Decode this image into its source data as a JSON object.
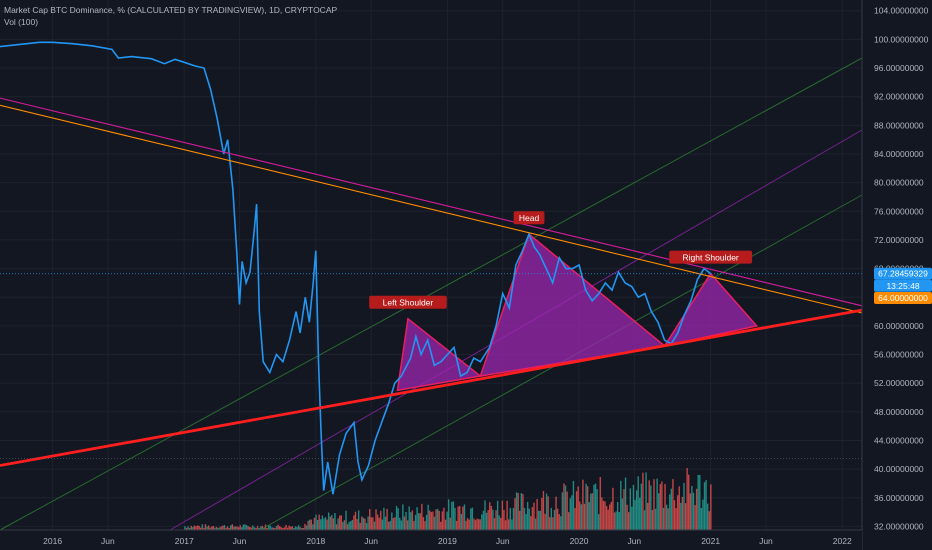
{
  "header": {
    "title": "Market Cap BTC Dominance, % (CALCULATED BY TRADINGVIEW), 1D, CRYPTOCAP",
    "volume_label": "Vol (100)"
  },
  "price_tags": {
    "last_price": "67.28459329",
    "countdown": "13:25:48",
    "trend_price": "64.00000000"
  },
  "colors": {
    "background": "#131722",
    "price_line": "#2196f3",
    "volume_up": "#26a69a",
    "volume_down": "#ef5350",
    "pattern_fill": "#9c27b0",
    "pattern_stroke": "#e91e63",
    "support_line": "#ff1e1e",
    "label_bg": "#b71c1c",
    "channel_line": "#2e7d32",
    "channel_mid": "#8e24aa",
    "resistance_line": "#ff8c00",
    "axis_text": "#b2b5be"
  },
  "chart_data": {
    "type": "line",
    "title": "Market Cap BTC Dominance, % (CALCULATED BY TRADINGVIEW), 1D, CRYPTOCAP",
    "x_axis_labels": [
      "2016",
      "Jun",
      "2017",
      "Jun",
      "2018",
      "Jun",
      "2019",
      "Jun",
      "2020",
      "Jun",
      "2021",
      "Jun",
      "2022"
    ],
    "y_axis_labels": [
      "104.00000000",
      "100.00000000",
      "96.00000000",
      "92.00000000",
      "88.00000000",
      "84.00000000",
      "80.00000000",
      "76.00000000",
      "72.00000000",
      "68.00000000",
      "64.00000000",
      "60.00000000",
      "56.00000000",
      "52.00000000",
      "48.00000000",
      "44.00000000",
      "40.00000000",
      "36.00000000",
      "32.00000000"
    ],
    "ylim": [
      31.5,
      105.5
    ],
    "xlim": [
      2015.6,
      2022.15
    ],
    "grid": true,
    "series": [
      {
        "name": "BTC Dominance",
        "points": [
          [
            2015.6,
            99.0
          ],
          [
            2015.75,
            99.3
          ],
          [
            2015.9,
            99.6
          ],
          [
            2016.0,
            99.6
          ],
          [
            2016.15,
            99.4
          ],
          [
            2016.3,
            99.1
          ],
          [
            2016.45,
            98.6
          ],
          [
            2016.5,
            97.4
          ],
          [
            2016.6,
            97.6
          ],
          [
            2016.75,
            97.3
          ],
          [
            2016.85,
            96.6
          ],
          [
            2016.93,
            97.2
          ],
          [
            2017.0,
            96.8
          ],
          [
            2017.08,
            96.3
          ],
          [
            2017.15,
            96.0
          ],
          [
            2017.2,
            93.0
          ],
          [
            2017.25,
            89.0
          ],
          [
            2017.3,
            84.0
          ],
          [
            2017.33,
            86.0
          ],
          [
            2017.37,
            79.0
          ],
          [
            2017.4,
            70.0
          ],
          [
            2017.42,
            63.0
          ],
          [
            2017.44,
            69.0
          ],
          [
            2017.47,
            66.0
          ],
          [
            2017.5,
            67.5
          ],
          [
            2017.53,
            73.0
          ],
          [
            2017.55,
            77.0
          ],
          [
            2017.57,
            62.0
          ],
          [
            2017.6,
            55.0
          ],
          [
            2017.65,
            53.5
          ],
          [
            2017.7,
            56.0
          ],
          [
            2017.75,
            55.0
          ],
          [
            2017.8,
            58.0
          ],
          [
            2017.85,
            62.0
          ],
          [
            2017.88,
            59.0
          ],
          [
            2017.92,
            64.0
          ],
          [
            2017.95,
            60.5
          ],
          [
            2017.98,
            66.0
          ],
          [
            2018.0,
            70.5
          ],
          [
            2018.02,
            55.0
          ],
          [
            2018.04,
            45.0
          ],
          [
            2018.06,
            37.0
          ],
          [
            2018.09,
            41.0
          ],
          [
            2018.13,
            36.5
          ],
          [
            2018.18,
            42.0
          ],
          [
            2018.23,
            45.0
          ],
          [
            2018.29,
            46.5
          ],
          [
            2018.32,
            41.0
          ],
          [
            2018.35,
            38.5
          ],
          [
            2018.4,
            40.5
          ],
          [
            2018.45,
            44.0
          ],
          [
            2018.5,
            46.5
          ],
          [
            2018.55,
            49.0
          ],
          [
            2018.6,
            52.0
          ],
          [
            2018.65,
            53.0
          ],
          [
            2018.72,
            55.5
          ],
          [
            2018.76,
            58.5
          ],
          [
            2018.8,
            56.0
          ],
          [
            2018.85,
            58.0
          ],
          [
            2018.9,
            54.5
          ],
          [
            2018.95,
            55.0
          ],
          [
            2019.0,
            56.0
          ],
          [
            2019.05,
            57.0
          ],
          [
            2019.1,
            53.0
          ],
          [
            2019.15,
            53.5
          ],
          [
            2019.2,
            55.5
          ],
          [
            2019.25,
            55.0
          ],
          [
            2019.32,
            57.0
          ],
          [
            2019.37,
            60.0
          ],
          [
            2019.42,
            64.5
          ],
          [
            2019.47,
            62.5
          ],
          [
            2019.52,
            68.5
          ],
          [
            2019.57,
            70.5
          ],
          [
            2019.62,
            72.8
          ],
          [
            2019.66,
            71.0
          ],
          [
            2019.7,
            70.0
          ],
          [
            2019.75,
            68.0
          ],
          [
            2019.8,
            66.0
          ],
          [
            2019.85,
            69.5
          ],
          [
            2019.9,
            68.0
          ],
          [
            2019.95,
            68.0
          ],
          [
            2020.0,
            68.5
          ],
          [
            2020.05,
            65.0
          ],
          [
            2020.1,
            63.5
          ],
          [
            2020.15,
            64.5
          ],
          [
            2020.2,
            66.0
          ],
          [
            2020.25,
            65.0
          ],
          [
            2020.3,
            67.5
          ],
          [
            2020.35,
            66.0
          ],
          [
            2020.4,
            65.5
          ],
          [
            2020.45,
            64.0
          ],
          [
            2020.5,
            64.5
          ],
          [
            2020.55,
            62.0
          ],
          [
            2020.6,
            60.5
          ],
          [
            2020.65,
            58.0
          ],
          [
            2020.7,
            57.5
          ],
          [
            2020.75,
            59.0
          ],
          [
            2020.8,
            61.5
          ],
          [
            2020.85,
            63.5
          ],
          [
            2020.9,
            66.5
          ],
          [
            2020.95,
            68.0
          ],
          [
            2021.0,
            67.3
          ]
        ]
      }
    ],
    "volume_series_name": "Vol (100)",
    "annotations": [
      {
        "label": "Left Shoulder",
        "x": 2018.7,
        "y": 61.0
      },
      {
        "label": "Head",
        "x": 2019.62,
        "y": 72.8
      },
      {
        "label": "Right Shoulder",
        "x": 2021.0,
        "y": 67.3
      }
    ],
    "head_and_shoulders_pattern": [
      [
        2018.62,
        51.0
      ],
      [
        2018.7,
        61.0
      ],
      [
        2019.25,
        53.0
      ],
      [
        2019.62,
        72.8
      ],
      [
        2020.65,
        57.2
      ],
      [
        2021.0,
        67.3
      ],
      [
        2021.35,
        60.0
      ]
    ],
    "support_trendline": [
      [
        2015.6,
        40.5
      ],
      [
        2022.15,
        62.2
      ]
    ],
    "resistance_trendlines": [
      {
        "points": [
          [
            2015.6,
            90.8
          ],
          [
            2022.15,
            61.8
          ]
        ]
      },
      {
        "points": [
          [
            2015.6,
            91.8
          ],
          [
            2022.15,
            62.8
          ]
        ]
      }
    ]
  }
}
